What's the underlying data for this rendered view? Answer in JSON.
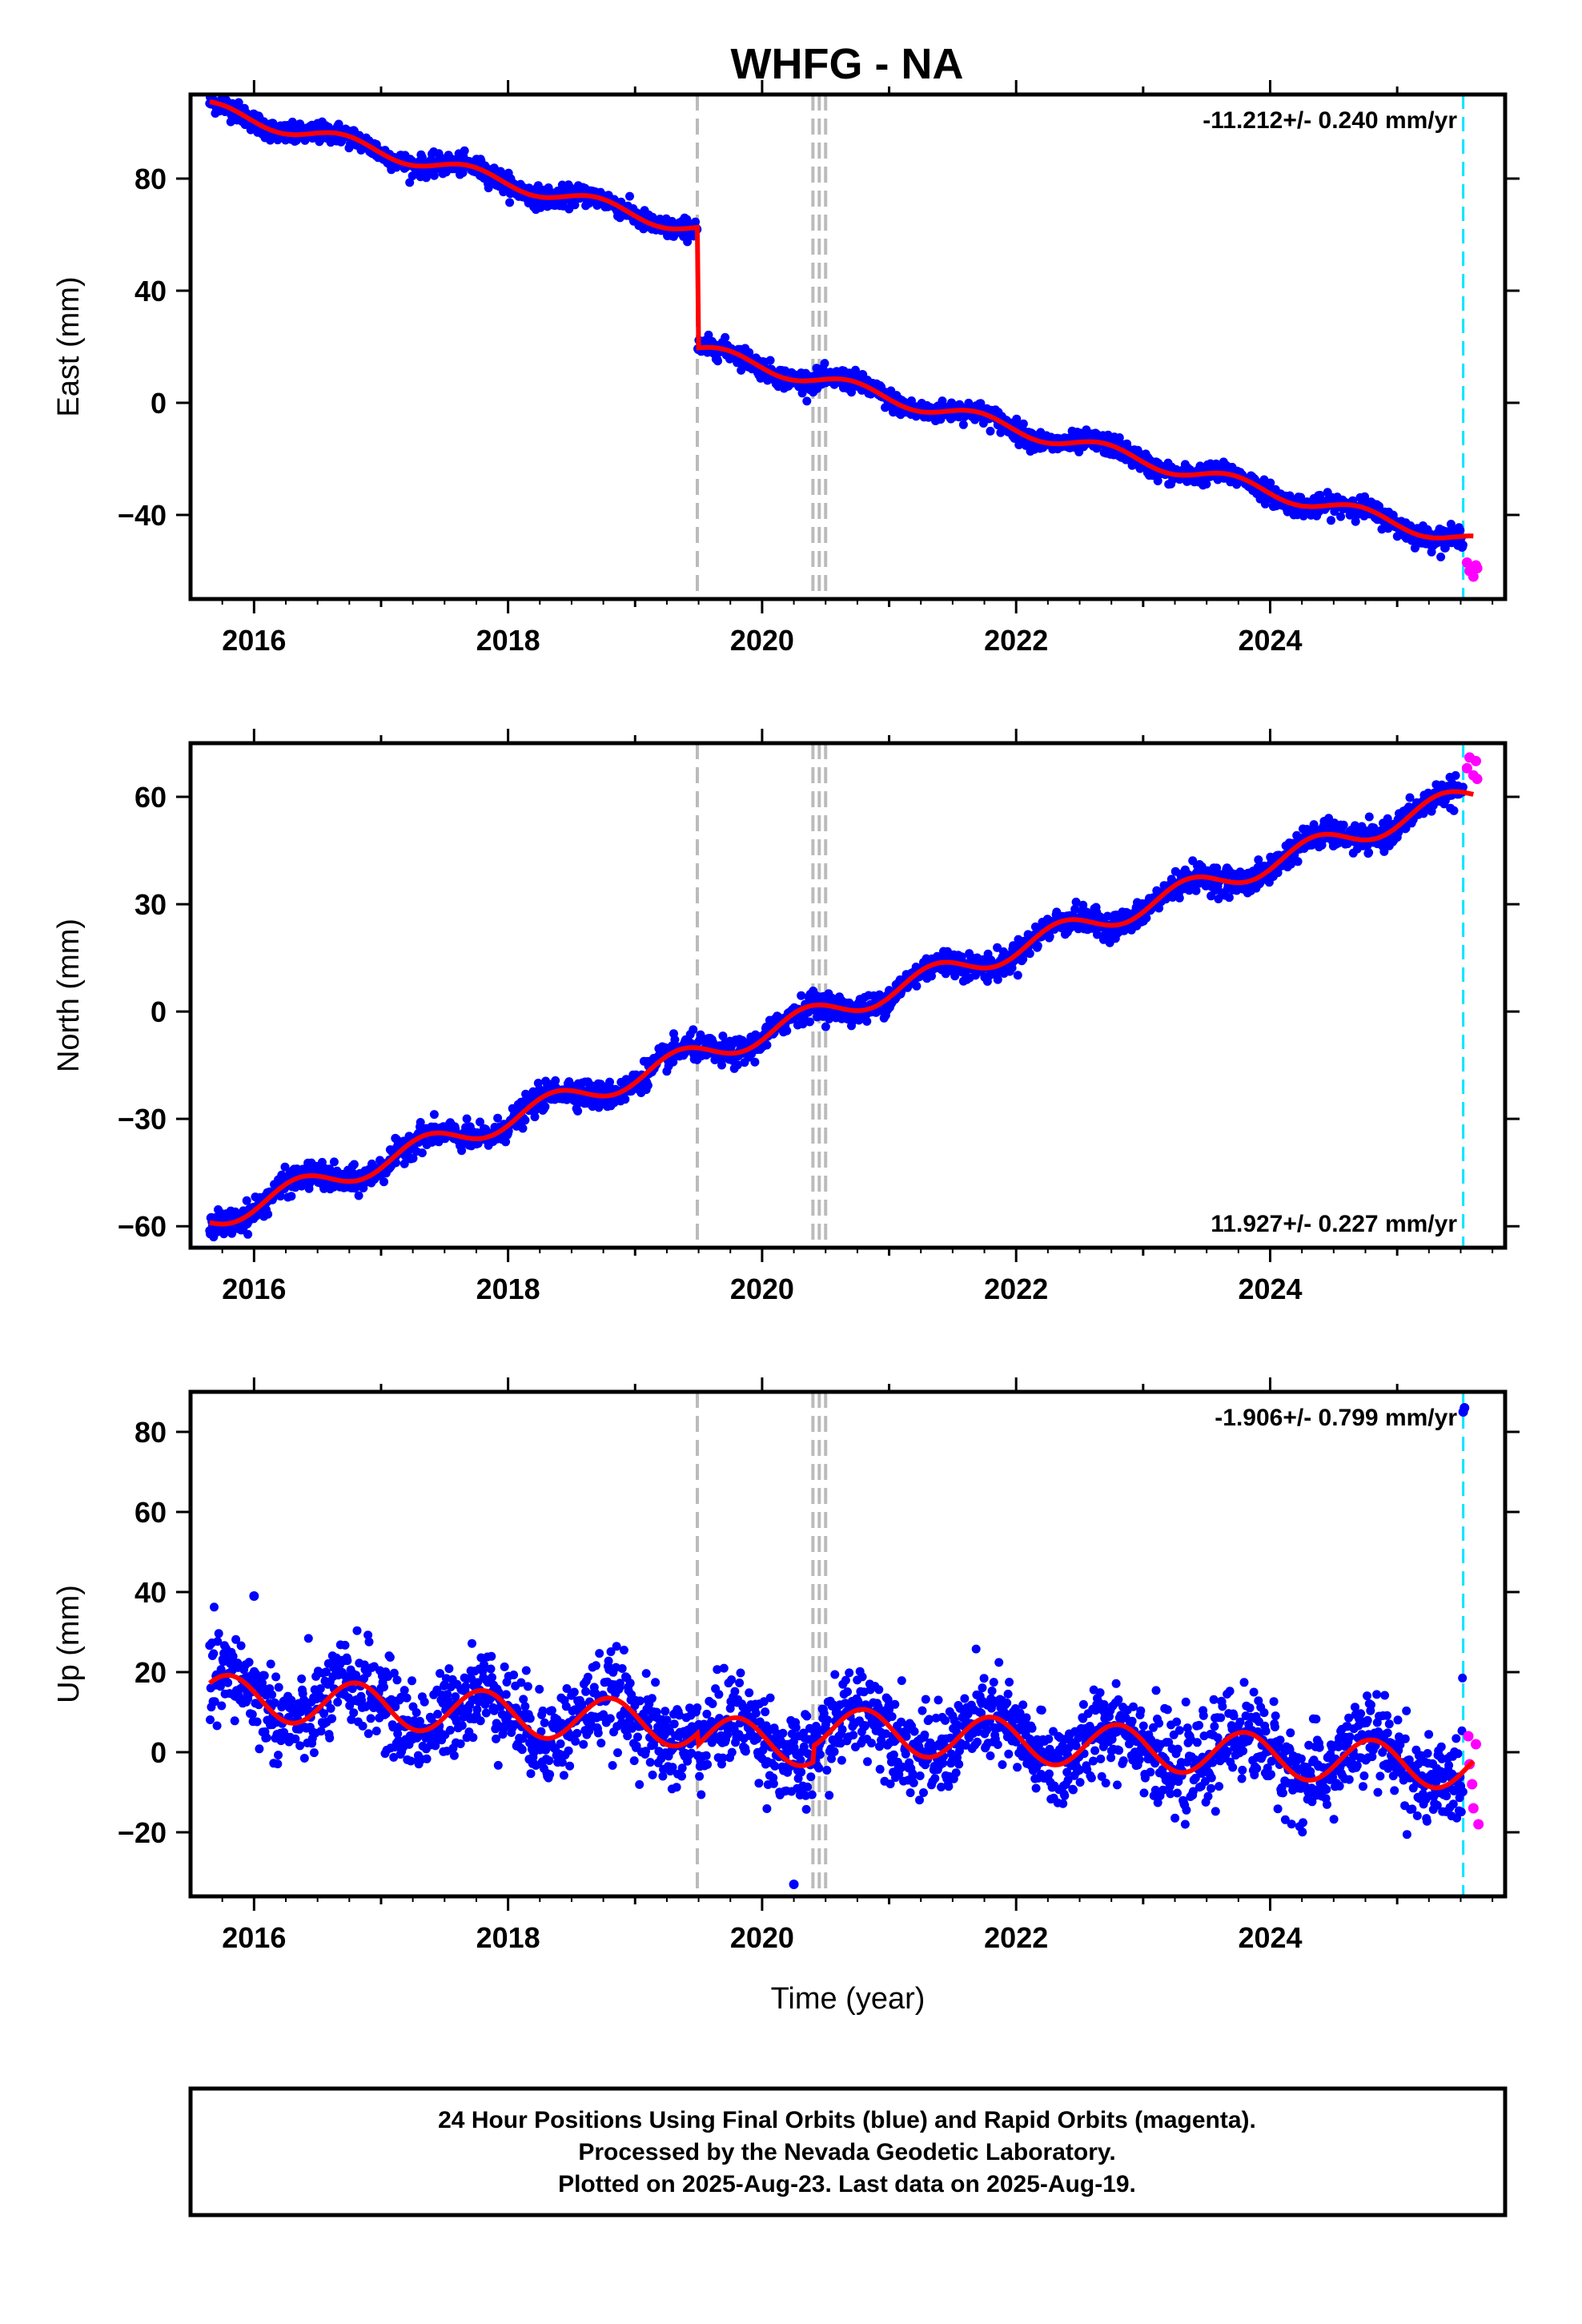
{
  "title": "WHFG - NA",
  "footer": {
    "line1": "24 Hour Positions Using Final Orbits (blue) and Rapid Orbits (magenta).",
    "line2": "Processed by the Nevada Geodetic Laboratory.",
    "line3": "Plotted on 2025-Aug-23. Last data on 2025-Aug-19."
  },
  "colors": {
    "final_orbits": "#0000ff",
    "rapid_orbits": "#ff00ff",
    "model": "#ff0000",
    "equipment_change": "#bbbbbb",
    "last_final_marker": "#00e5ff"
  },
  "chart_data": [
    {
      "type": "scatter",
      "ylabel": "East (mm)",
      "xlabel": "",
      "xlim": [
        2015.5,
        2025.85
      ],
      "ylim": [
        -70,
        110
      ],
      "yticks": [
        -40,
        0,
        40,
        80
      ],
      "xticks": [
        2016,
        2018,
        2020,
        2022,
        2024
      ],
      "rate_label": "-11.212+/- 0.240 mm/yr",
      "rate_position": "top-right",
      "rate_mm_per_yr": -11.212,
      "offsets": [
        {
          "x": 2019.49,
          "step_mm": -43
        },
        {
          "x": 2020.4,
          "step_mm": 0
        },
        {
          "x": 2020.45,
          "step_mm": 0
        },
        {
          "x": 2020.5,
          "step_mm": 0
        }
      ],
      "annual": {
        "amp": 2.5,
        "phase": 0.2
      },
      "start_y": 105,
      "scatter": 1.8,
      "outliers": [],
      "rapid": [
        [
          2025.55,
          -57
        ],
        [
          2025.57,
          -60
        ],
        [
          2025.6,
          -62
        ],
        [
          2025.62,
          -58
        ],
        [
          2025.63,
          -59
        ]
      ]
    },
    {
      "type": "scatter",
      "ylabel": "North (mm)",
      "xlabel": "",
      "xlim": [
        2015.5,
        2025.85
      ],
      "ylim": [
        -66,
        75
      ],
      "yticks": [
        -60,
        -30,
        0,
        30,
        60
      ],
      "xticks": [
        2016,
        2018,
        2020,
        2022,
        2024
      ],
      "rate_label": "11.927+/- 0.227 mm/yr",
      "rate_position": "bottom-right",
      "rate_mm_per_yr": 11.927,
      "offsets": [
        {
          "x": 2019.49,
          "step_mm": 0
        },
        {
          "x": 2020.4,
          "step_mm": 0
        },
        {
          "x": 2020.45,
          "step_mm": 0
        },
        {
          "x": 2020.5,
          "step_mm": 0
        }
      ],
      "annual": {
        "amp": 3.2,
        "phase": 0.55
      },
      "start_y": -58,
      "scatter": 1.8,
      "outliers": [],
      "rapid": [
        [
          2025.55,
          68
        ],
        [
          2025.57,
          71
        ],
        [
          2025.6,
          66
        ],
        [
          2025.62,
          70
        ],
        [
          2025.63,
          65
        ]
      ]
    },
    {
      "type": "scatter",
      "ylabel": "Up (mm)",
      "xlabel": "Time (year)",
      "xlim": [
        2015.5,
        2025.85
      ],
      "ylim": [
        -36,
        90
      ],
      "yticks": [
        -20,
        0,
        20,
        40,
        60,
        80
      ],
      "xticks": [
        2016,
        2018,
        2020,
        2022,
        2024
      ],
      "rate_label": "-1.906+/- 0.799 mm/yr",
      "rate_position": "top-right",
      "rate_mm_per_yr": -1.906,
      "offsets": [
        {
          "x": 2019.49,
          "step_mm": -3
        },
        {
          "x": 2020.4,
          "step_mm": 4
        },
        {
          "x": 2020.45,
          "step_mm": 0
        },
        {
          "x": 2020.5,
          "step_mm": 0
        }
      ],
      "annual": {
        "amp": 5.5,
        "phase": 0.1
      },
      "start_y": 14,
      "scatter": 5.5,
      "outliers": [
        [
          2025.52,
          85
        ],
        [
          2025.53,
          86
        ],
        [
          2020.25,
          -33
        ],
        [
          2016.0,
          39
        ]
      ],
      "rapid": [
        [
          2025.56,
          4
        ],
        [
          2025.57,
          -3
        ],
        [
          2025.59,
          -8
        ],
        [
          2025.6,
          -14
        ],
        [
          2025.62,
          2
        ],
        [
          2025.64,
          -18
        ]
      ]
    }
  ],
  "vertical_markers": {
    "equipment_change_years": [
      2019.49,
      2020.4,
      2020.45,
      2020.5
    ],
    "last_final_year": 2025.52
  }
}
